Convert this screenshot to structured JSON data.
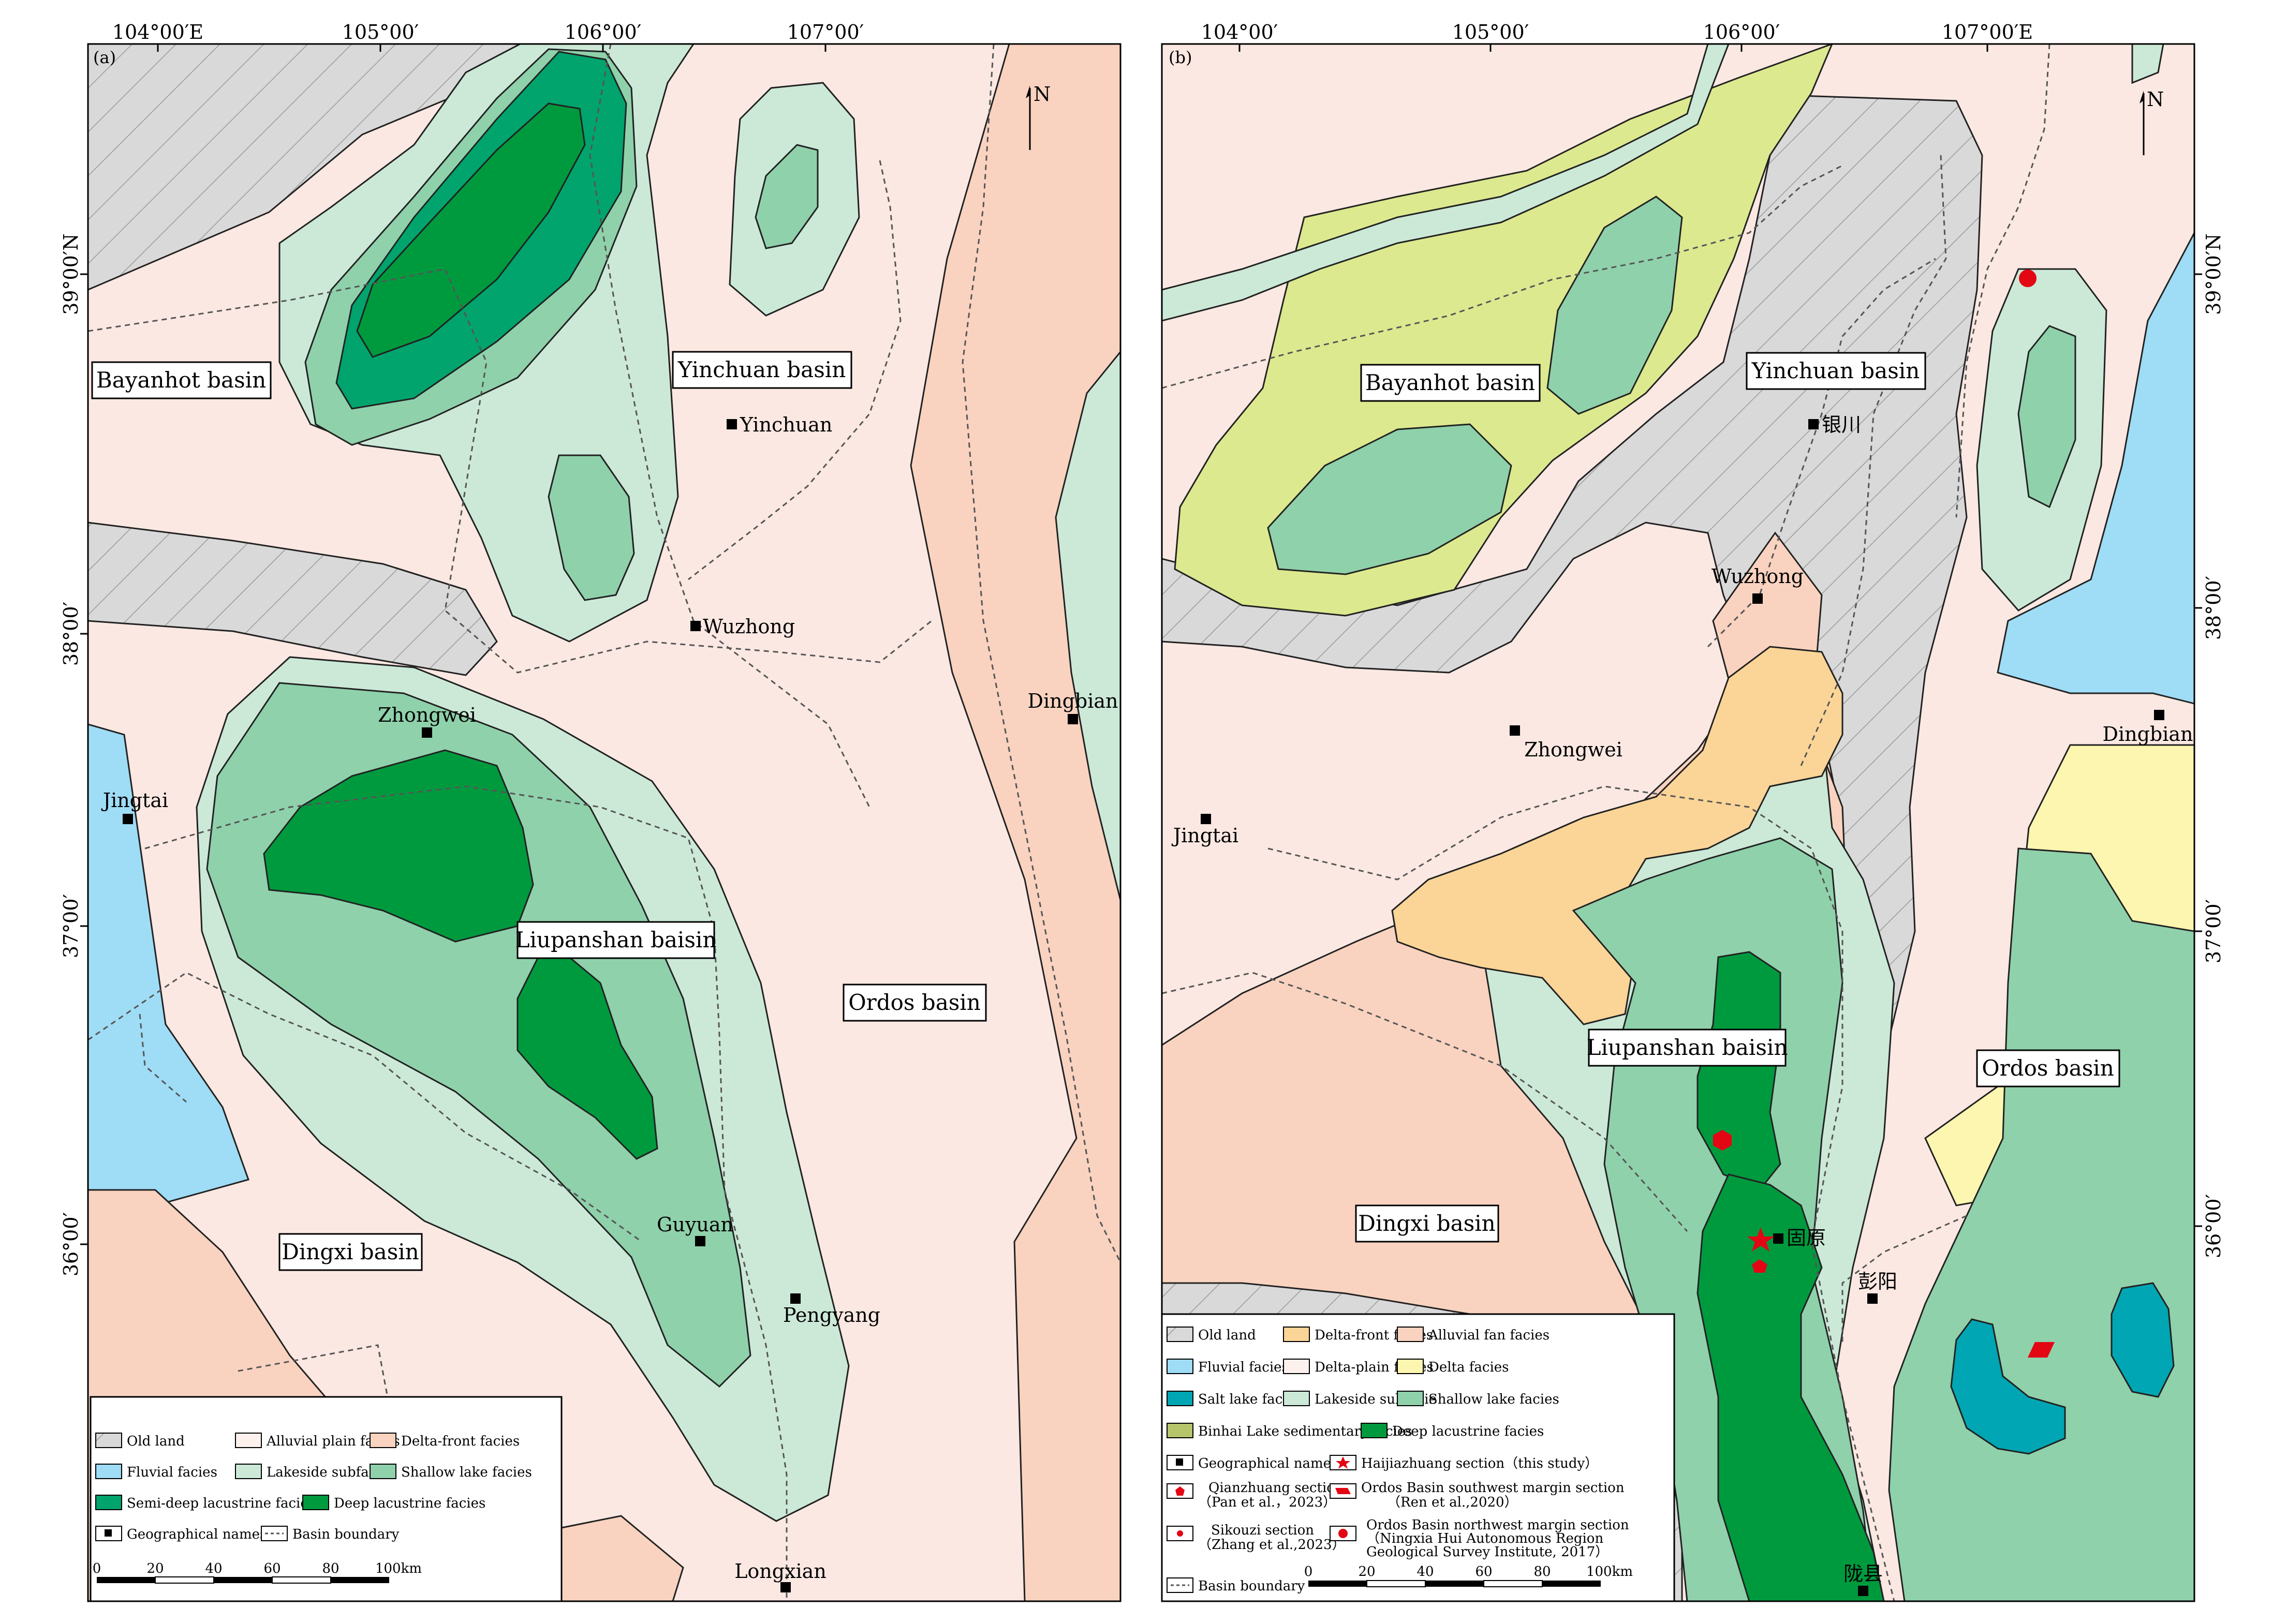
{
  "panel_a": {
    "letter": "(a)",
    "lon_ticks": [
      "104°00′E",
      "105°00′",
      "106°00′",
      "107°00′"
    ],
    "lat_ticks": [
      "39°00′N",
      "38°00′",
      "37°00′",
      "36°00′"
    ],
    "basins": [
      "Bayanhot basin",
      "Yinchuan basin",
      "Liupanshan baisin",
      "Ordos basin",
      "Dingxi basin"
    ],
    "places": [
      "Yinchuan",
      "Wuzhong",
      "Zhongwei",
      "Jingtai",
      "Dingbian",
      "Guyuan",
      "Pengyang",
      "Longxian"
    ],
    "north": "N",
    "legend": [
      "Old land",
      "Alluvial plain facies",
      "Delta-front facies",
      "Fluvial facies",
      "Lakeside subfacie",
      "Shallow lake facies",
      "Semi-deep lacustrine facies",
      "Deep lacustrine facies",
      "Geographical names",
      "Basin boundary"
    ],
    "scale": [
      "0",
      "20",
      "40",
      "60",
      "80",
      "100km"
    ]
  },
  "panel_b": {
    "letter": "(b)",
    "lon_ticks": [
      "104°00′",
      "105°00′",
      "106°00′",
      "107°00′E"
    ],
    "lat_ticks": [
      "39°00′N",
      "38°00′",
      "37°00′",
      "36°00′"
    ],
    "basins": [
      "Bayanhot basin",
      "Yinchuan basin",
      "Liupanshan baisin",
      "Ordos basin",
      "Dingxi basin"
    ],
    "places": [
      "银川",
      "Wuzhong",
      "Zhongwei",
      "Jingtai",
      "Dingbian",
      "固原",
      "彭阳",
      "陇县"
    ],
    "north": "N",
    "legend": [
      "Old land",
      "Delta-front facies",
      "Alluvial fan facies",
      "Fluvial facies",
      "Delta-plain facies",
      "Delta facies",
      "Salt lake facies",
      "Lakeside subfacie",
      "Shallow lake facies",
      "Binhai Lake sedimentary facies",
      "Deep lacustrine facies",
      "Geographical names",
      "Haijiazhuang section（this study）",
      "Qianzhuang section",
      "（Pan et al.，2023）",
      "Ordos Basin southwest margin section",
      "（Ren et al.,2020）",
      "Sikouzi section",
      "（Zhang et al.,2023）",
      "Ordos Basin northwest margin section",
      "（Ningxia Hui Autonomous Region",
      "Geological Survey Institute, 2017）",
      "Basin boundary"
    ],
    "scale": [
      "0",
      "20",
      "40",
      "60",
      "80",
      "100km"
    ]
  },
  "colors": {
    "background": "#fbe8e2",
    "old_land": "#d9d9d9",
    "alluvial_plain": "#fdf1ee",
    "delta_front_a": "#f9d3c0",
    "fluvial": "#9fdcf5",
    "lakeside": "#cce9d8",
    "shallow_lake": "#8fd1ab",
    "semi_deep": "#00a46c",
    "deep": "#009a3e",
    "delta_front_b": "#fbd597",
    "alluvial_fan": "#f9d3c0",
    "delta_plain": "#fdf1ee",
    "delta": "#fdf6b0",
    "salt_lake": "#00a6b4",
    "binhai": "#dce98f",
    "section_marker": "#e30613"
  }
}
